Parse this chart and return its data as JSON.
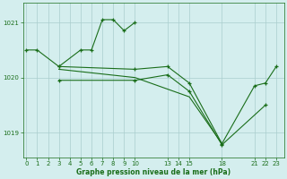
{
  "bg_color": "#d4eeee",
  "line_color": "#1a6e1a",
  "grid_color": "#aacece",
  "xlabel": "Graphe pression niveau de la mer (hPa)",
  "xlabel_color": "#1a6e1a",
  "xticks": [
    0,
    1,
    2,
    3,
    4,
    5,
    6,
    7,
    8,
    9,
    10,
    13,
    14,
    15,
    18,
    21,
    22,
    23
  ],
  "yticks": [
    1019,
    1020,
    1021
  ],
  "ylim": [
    1018.55,
    1021.35
  ],
  "xlim": [
    -0.3,
    23.7
  ],
  "series": [
    {
      "x": [
        0,
        1,
        3,
        5,
        6,
        7,
        8,
        9,
        10
      ],
      "y": [
        1020.5,
        1020.5,
        1020.2,
        1020.5,
        1020.5,
        1021.05,
        1021.05,
        1020.85,
        1021.0
      ],
      "marker": true
    },
    {
      "x": [
        3,
        10,
        13,
        15,
        18,
        21,
        22,
        23
      ],
      "y": [
        1020.2,
        1020.15,
        1020.2,
        1019.9,
        1018.8,
        1019.85,
        1019.9,
        1020.2
      ],
      "marker": true
    },
    {
      "x": [
        3,
        10,
        13,
        15,
        18,
        22
      ],
      "y": [
        1019.95,
        1019.95,
        1020.05,
        1019.75,
        1018.78,
        1019.5
      ],
      "marker": true
    },
    {
      "x": [
        3,
        10,
        15,
        18
      ],
      "y": [
        1020.15,
        1020.0,
        1019.65,
        1018.8
      ],
      "marker": false
    }
  ],
  "lw": 0.8,
  "ms": 3,
  "tick_fontsize": 5,
  "xlabel_fontsize": 5.5
}
